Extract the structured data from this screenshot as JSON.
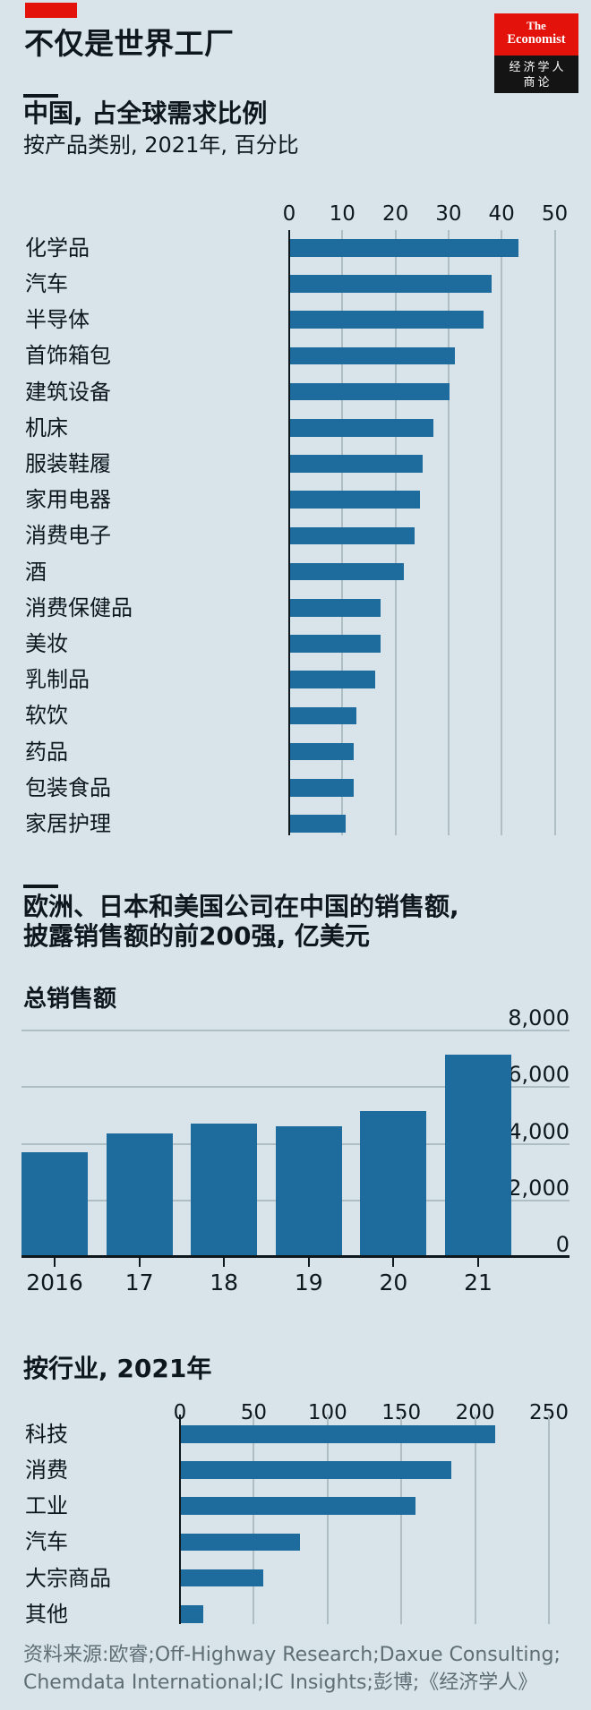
{
  "header": {
    "title": "不仅是世界工厂",
    "logo": {
      "line1": "The",
      "line2": "Economist",
      "line3": "经济学人",
      "line4": "商论"
    }
  },
  "chart_data": [
    {
      "type": "bar",
      "orientation": "horizontal",
      "title": "中国, 占全球需求比例",
      "subtitle": "按产品类别, 2021年, 百分比",
      "unit": "百分比",
      "xlim": [
        0,
        50
      ],
      "xticks": [
        0,
        10,
        20,
        30,
        40,
        50
      ],
      "grid": "vertical",
      "categories": [
        "化学品",
        "汽车",
        "半导体",
        "首饰箱包",
        "建筑设备",
        "机床",
        "服装鞋履",
        "家用电器",
        "消费电子",
        "酒",
        "消费保健品",
        "美妆",
        "乳制品",
        "软饮",
        "药品",
        "包装食品",
        "家居护理"
      ],
      "values": [
        43,
        38,
        36.5,
        31,
        30,
        27,
        25,
        24.5,
        23.5,
        21.5,
        17,
        17,
        16,
        12.5,
        12,
        12,
        10.5
      ]
    },
    {
      "type": "bar",
      "orientation": "vertical",
      "title_line1": "欧洲、日本和美国公司在中国的销售额,",
      "title_line2": "披露销售额的前200强, 亿美元",
      "subtitle": "总销售额",
      "unit": "亿美元",
      "ylim": [
        0,
        8000
      ],
      "ytick_values": [
        8000,
        6000,
        4000,
        2000,
        0
      ],
      "ytick_labels": [
        "8,000",
        "6,000",
        "4,000",
        "2,000",
        "0"
      ],
      "grid": "horizontal",
      "categories": [
        "2016",
        "17",
        "18",
        "19",
        "20",
        "21"
      ],
      "values": [
        3650,
        4300,
        4650,
        4550,
        5100,
        7100
      ]
    },
    {
      "type": "bar",
      "orientation": "horizontal",
      "title": "按行业, 2021年",
      "unit": "亿美元",
      "xlim": [
        0,
        250
      ],
      "xticks": [
        0,
        50,
        100,
        150,
        200,
        250
      ],
      "grid": "vertical",
      "categories": [
        "科技",
        "消费",
        "工业",
        "汽车",
        "大宗商品",
        "其他"
      ],
      "values": [
        213,
        183,
        159,
        81,
        56,
        15
      ]
    }
  ],
  "footer": {
    "line1": "资料来源:欧睿;Off-Highway Research;Daxue Consulting;",
    "line2": "Chemdata International;IC Insights;彭博;《经济学人》"
  },
  "colors": {
    "background": "#D8E4EA",
    "bar": "#1E6C9E",
    "red": "#E3120B",
    "text": "#0D171C",
    "grid": "#AFBEC5",
    "muted": "#5F6E75"
  }
}
